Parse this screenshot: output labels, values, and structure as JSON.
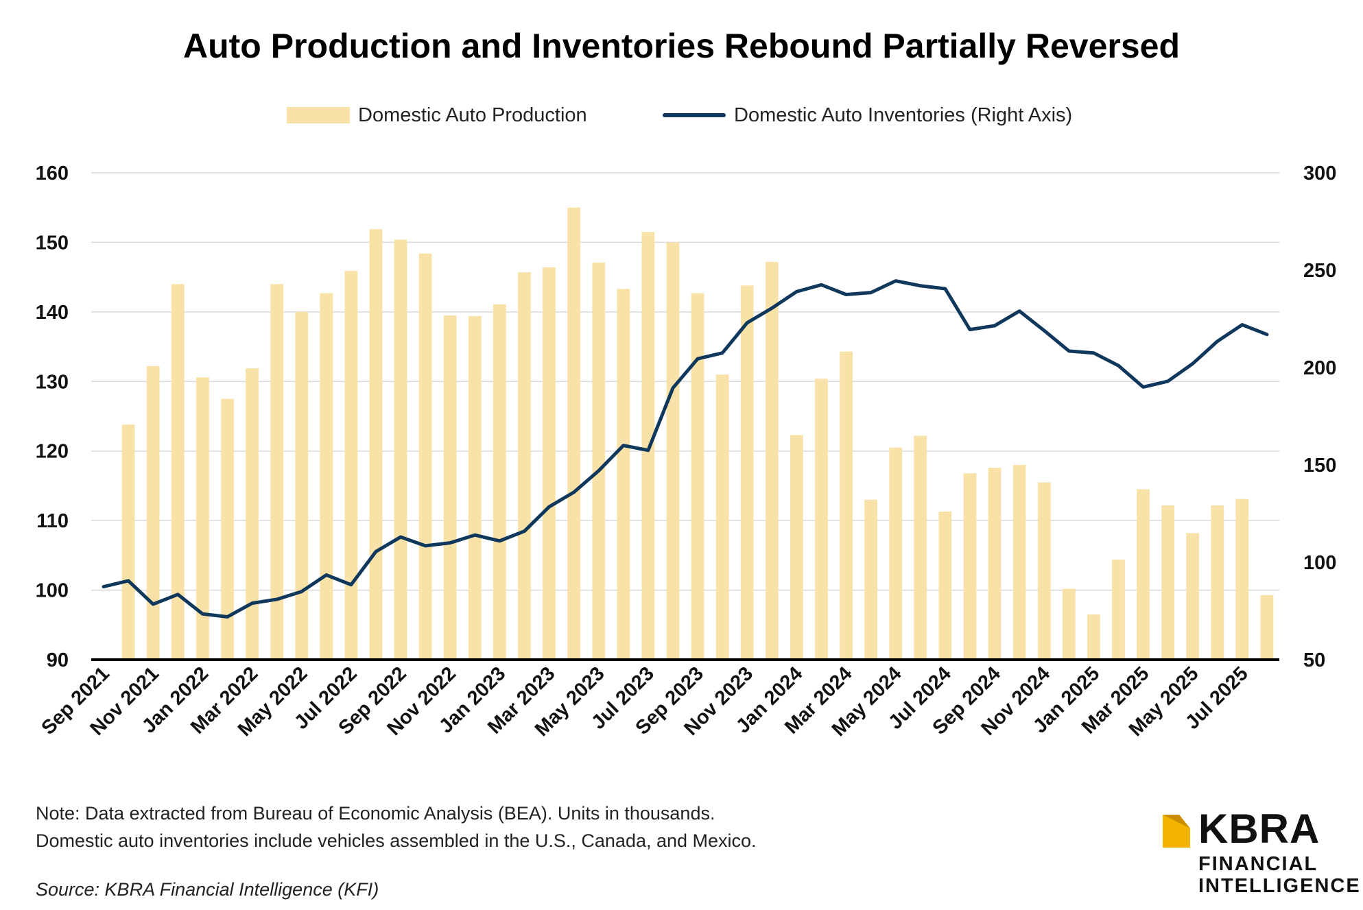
{
  "chart_data": {
    "type": "bar",
    "title": "Auto Production and Inventories Rebound Partially Reversed",
    "xlabel": "",
    "ylabel": "",
    "y2label": "",
    "ylim": [
      90,
      160
    ],
    "yticks": [
      90,
      100,
      110,
      120,
      130,
      140,
      150,
      160
    ],
    "y2lim": [
      50,
      300
    ],
    "y2ticks": [
      50,
      100,
      150,
      200,
      250,
      300
    ],
    "grid": true,
    "legend_position": "top-center",
    "x": [
      "Sep 2021",
      "Oct 2021",
      "Nov 2021",
      "Dec 2021",
      "Jan 2022",
      "Feb 2022",
      "Mar 2022",
      "Apr 2022",
      "May 2022",
      "Jun 2022",
      "Jul 2022",
      "Aug 2022",
      "Sep 2022",
      "Oct 2022",
      "Nov 2022",
      "Dec 2022",
      "Jan 2023",
      "Feb 2023",
      "Mar 2023",
      "Apr 2023",
      "May 2023",
      "Jun 2023",
      "Jul 2023",
      "Aug 2023",
      "Sep 2023",
      "Oct 2023",
      "Nov 2023",
      "Dec 2023",
      "Jan 2024",
      "Feb 2024",
      "Mar 2024",
      "Apr 2024",
      "May 2024",
      "Jun 2024",
      "Jul 2024",
      "Aug 2024",
      "Sep 2024",
      "Oct 2024",
      "Nov 2024",
      "Dec 2024",
      "Jan 2025",
      "Feb 2025",
      "Mar 2025",
      "Apr 2025",
      "May 2025",
      "Jun 2025",
      "Jul 2025",
      "Aug 2025"
    ],
    "x_tick_labels": [
      "Sep 2021",
      "Nov 2021",
      "Jan 2022",
      "Mar 2022",
      "May 2022",
      "Jul 2022",
      "Sep 2022",
      "Nov 2022",
      "Jan 2023",
      "Mar 2023",
      "May 2023",
      "Jul 2023",
      "Sep 2023",
      "Nov 2023",
      "Jan 2024",
      "Mar 2024",
      "May 2024",
      "Jul 2024",
      "Sep 2024",
      "Nov 2024",
      "Jan 2025",
      "Mar 2025",
      "May 2025",
      "Jul 2025"
    ],
    "series": [
      {
        "name": "Domestic Auto Production",
        "type": "bar",
        "axis": "left",
        "color": "#f8e2a8",
        "values": [
          null,
          123.8,
          132.2,
          144.0,
          130.6,
          127.5,
          131.9,
          144.0,
          140.0,
          142.7,
          145.9,
          151.9,
          150.4,
          148.4,
          139.5,
          139.4,
          141.1,
          145.7,
          146.4,
          155.0,
          147.1,
          143.3,
          151.5,
          150.0,
          142.7,
          131.0,
          143.8,
          147.2,
          122.3,
          130.4,
          134.3,
          113.0,
          120.5,
          122.2,
          111.3,
          116.8,
          117.6,
          118.0,
          115.5,
          100.2,
          96.5,
          104.4,
          114.5,
          112.2,
          108.2,
          112.2,
          113.1,
          99.3
        ]
      },
      {
        "name": "Domestic Auto Inventories (Right Axis)",
        "type": "line",
        "axis": "right",
        "color": "#10375c",
        "values": [
          87.5,
          90.5,
          78.5,
          83.5,
          73.5,
          72.0,
          79.0,
          81.0,
          85.0,
          93.5,
          88.5,
          105.5,
          113.0,
          108.5,
          110.0,
          114.0,
          111.0,
          116.0,
          128.5,
          136.0,
          147.0,
          160.0,
          157.5,
          189.5,
          204.5,
          207.5,
          223.0,
          230.5,
          239.0,
          242.5,
          237.5,
          238.5,
          244.5,
          242.0,
          240.5,
          219.5,
          221.5,
          229.0,
          219.0,
          208.5,
          207.5,
          201.0,
          190.0,
          193.0,
          202.0,
          213.5,
          222.0,
          217.0
        ]
      }
    ]
  },
  "note": {
    "line1": "Note: Data extracted from Bureau of Economic Analysis (BEA). Units in thousands.",
    "line2": "Domestic auto inventories include vehicles assembled in the U.S., Canada, and Mexico."
  },
  "source": "Source: KBRA Financial Intelligence (KFI)",
  "logo": {
    "name": "KBRA",
    "sub1": "FINANCIAL",
    "sub2": "INTELLIGENCE",
    "accent_color": "#f2b400"
  }
}
